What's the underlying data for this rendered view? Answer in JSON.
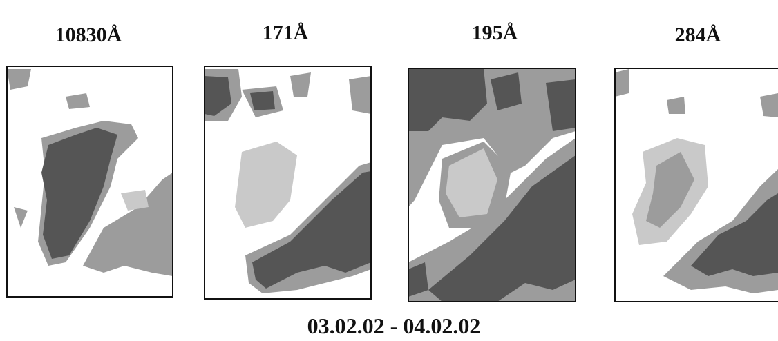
{
  "panels": [
    {
      "label": "10830Å"
    },
    {
      "label": "171Å"
    },
    {
      "label": "195Å"
    },
    {
      "label": "284Å"
    }
  ],
  "caption": "03.02.02 - 04.02.02"
}
